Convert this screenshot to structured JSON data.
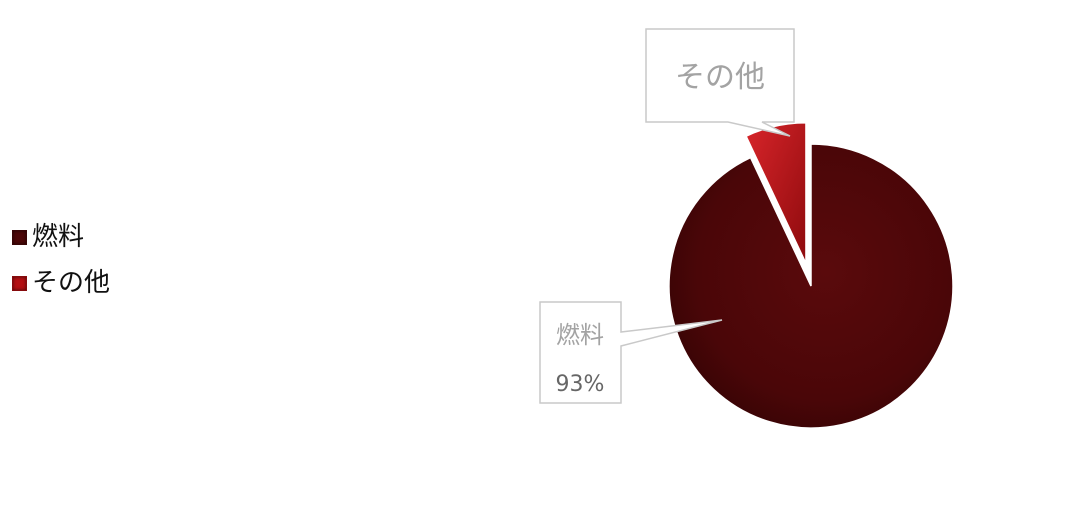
{
  "chart_data": {
    "type": "pie",
    "title": "",
    "slices": [
      {
        "label": "燃料",
        "value": 93,
        "color": "#4d0708",
        "value_label": "93%"
      },
      {
        "label": "その他",
        "value": 7,
        "color": "#b30f12",
        "exploded": true
      }
    ],
    "legend_position": "left"
  }
}
